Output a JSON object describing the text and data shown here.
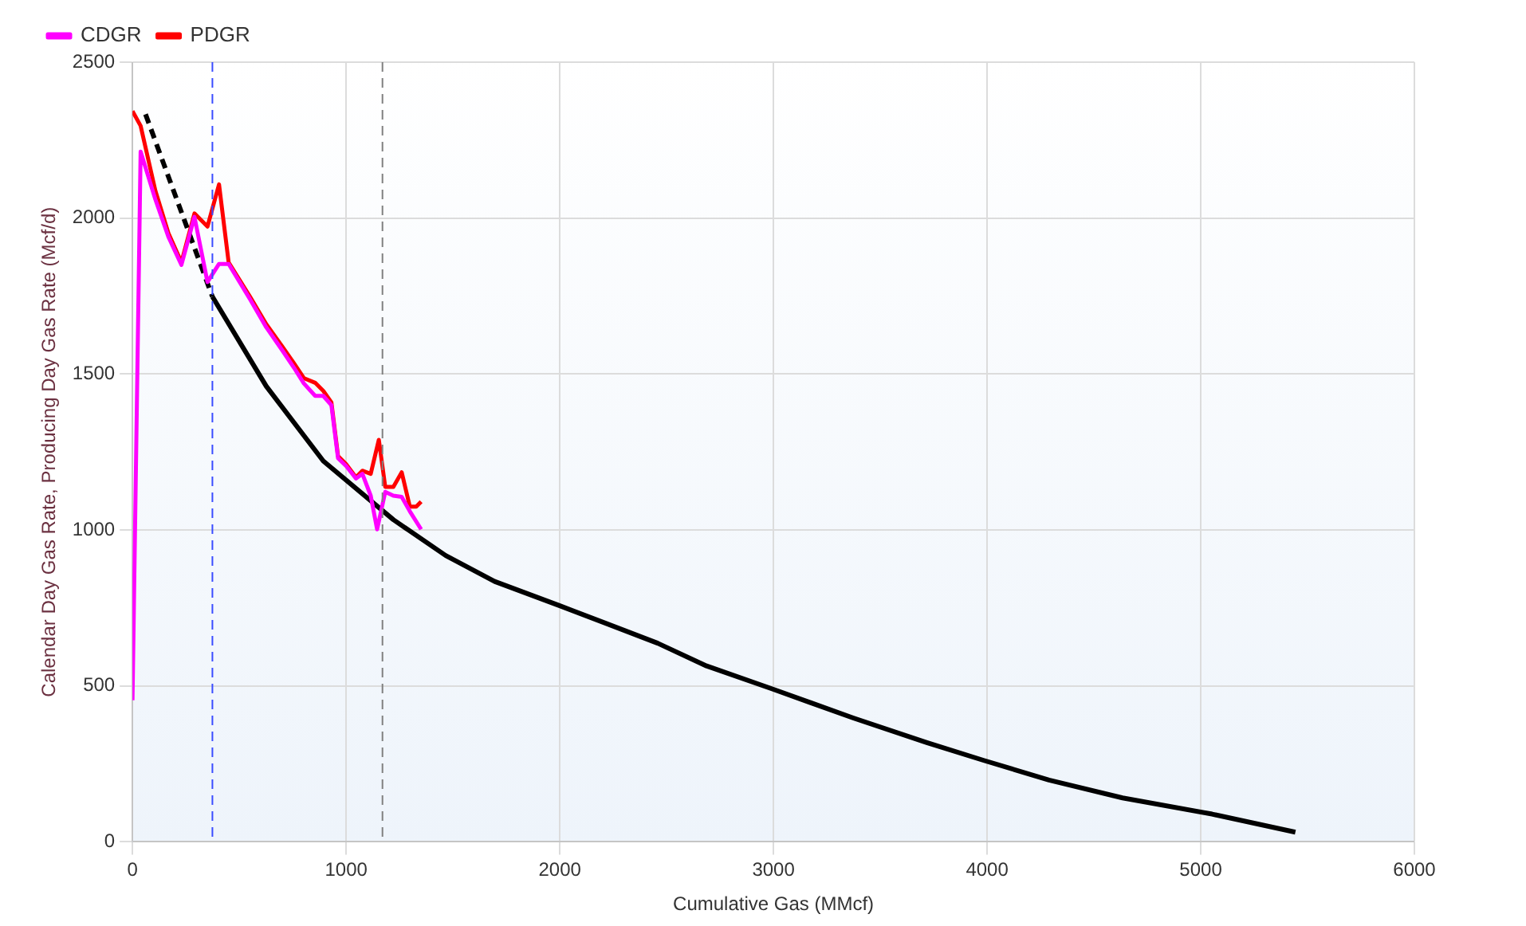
{
  "chart_data": {
    "type": "line",
    "xlabel": "Cumulative Gas (MMcf)",
    "ylabel": "Calendar Day Gas Rate, Producing Day Gas Rate (Mcf/d)",
    "xlim": [
      0,
      6000
    ],
    "xticks": [
      0,
      1000,
      2000,
      3000,
      4000,
      5000,
      6000
    ],
    "ylim": [
      0,
      2500
    ],
    "yticks": [
      0,
      500,
      1000,
      1500,
      2000,
      2500
    ],
    "grid": true,
    "legend": "top left",
    "marker": "none",
    "series": [
      {
        "name": "CDGR",
        "color": "#ff00ff",
        "x": [
          0,
          38,
          107,
          168,
          229,
          290,
          351,
          405,
          450,
          550,
          626,
          702,
          756,
          802,
          855,
          893,
          931,
          962,
          1000,
          1046,
          1076,
          1115,
          1145,
          1183,
          1221,
          1260,
          1298,
          1351
        ],
        "values": [
          454,
          2213,
          2060,
          1940,
          1850,
          2004,
          1795,
          1853,
          1853,
          1740,
          1650,
          1575,
          1520,
          1470,
          1430,
          1430,
          1400,
          1230,
          1205,
          1165,
          1180,
          1110,
          1002,
          1122,
          1110,
          1106,
          1060,
          1002
        ]
      },
      {
        "name": "PDGR",
        "color": "#ff0000",
        "x": [
          0,
          38,
          107,
          168,
          229,
          290,
          351,
          405,
          450,
          550,
          626,
          702,
          756,
          802,
          855,
          893,
          931,
          962,
          1000,
          1046,
          1076,
          1115,
          1153,
          1183,
          1221,
          1260,
          1298,
          1328,
          1351
        ],
        "values": [
          2343,
          2296,
          2088,
          1952,
          1858,
          2015,
          1973,
          2108,
          1858,
          1748,
          1660,
          1587,
          1534,
          1487,
          1472,
          1446,
          1409,
          1237,
          1211,
          1169,
          1190,
          1180,
          1289,
          1138,
          1138,
          1185,
          1075,
          1075,
          1091
        ]
      },
      {
        "color": "#000000",
        "line_style": "dashed",
        "x": [
          61,
          374
        ],
        "values": [
          2333,
          1748
        ]
      },
      {
        "color": "#000000",
        "x": [
          374,
          626,
          893,
          1221,
          1466,
          1695,
          2000,
          2458,
          2687,
          2992,
          3374,
          3718,
          3985,
          4290,
          4634,
          5053,
          5443
        ],
        "values": [
          1748,
          1461,
          1221,
          1033,
          918,
          835,
          757,
          637,
          564,
          491,
          397,
          318,
          261,
          198,
          141,
          89,
          31
        ]
      }
    ],
    "ref_lines": [
      {
        "axis": "x",
        "value": 374,
        "color": "#3a4cff",
        "line_style": "dashed"
      },
      {
        "axis": "x",
        "value": 1170,
        "color": "#808080",
        "line_style": "dashed"
      }
    ]
  }
}
